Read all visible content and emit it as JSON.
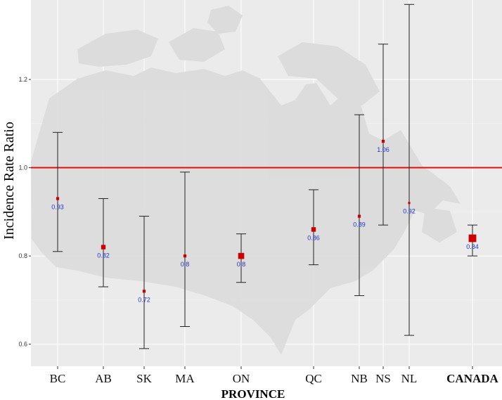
{
  "chart_data": {
    "type": "scatter",
    "title": "",
    "xlabel": "PROVINCE",
    "ylabel": "Incidence Rate Ratio",
    "ylim": [
      0.55,
      1.38
    ],
    "y_ticks": [
      0.6,
      0.8,
      1.0,
      1.2
    ],
    "y_tick_labels": [
      "0.6",
      "0.8",
      "1.0",
      "1.2"
    ],
    "reference_line": 1.0,
    "grid": true,
    "background_image": "canada-map-silhouette",
    "categories": [
      "BC",
      "AB",
      "SK",
      "MA",
      "ON",
      "QC",
      "NB",
      "NS",
      "NL",
      "CANADA"
    ],
    "points": [
      {
        "category": "BC",
        "estimate": 0.93,
        "lower": 0.81,
        "upper": 1.08,
        "label": "0.93",
        "marker_weight": 1
      },
      {
        "category": "AB",
        "estimate": 0.82,
        "lower": 0.73,
        "upper": 0.93,
        "label": "0.82",
        "marker_weight": 2
      },
      {
        "category": "SK",
        "estimate": 0.72,
        "lower": 0.59,
        "upper": 0.89,
        "label": "0.72",
        "marker_weight": 1
      },
      {
        "category": "MA",
        "estimate": 0.8,
        "lower": 0.64,
        "upper": 0.99,
        "label": "0.8",
        "marker_weight": 1
      },
      {
        "category": "ON",
        "estimate": 0.8,
        "lower": 0.74,
        "upper": 0.85,
        "label": "0.8",
        "marker_weight": 3
      },
      {
        "category": "QC",
        "estimate": 0.86,
        "lower": 0.78,
        "upper": 0.95,
        "label": "0.86",
        "marker_weight": 2
      },
      {
        "category": "NB",
        "estimate": 0.89,
        "lower": 0.71,
        "upper": 1.12,
        "label": "0.89",
        "marker_weight": 1
      },
      {
        "category": "NS",
        "estimate": 1.06,
        "lower": 0.87,
        "upper": 1.28,
        "label": "1.06",
        "marker_weight": 1
      },
      {
        "category": "NL",
        "estimate": 0.92,
        "lower": 0.62,
        "upper": 1.37,
        "label": "0.92",
        "marker_weight": 0.5
      },
      {
        "category": "CANADA",
        "estimate": 0.84,
        "lower": 0.8,
        "upper": 0.87,
        "label": "0.84",
        "marker_weight": 4
      }
    ],
    "colors": {
      "point": "#cc0000",
      "reference_line": "#e01010",
      "error_bar": "#222222",
      "data_label": "#2233cc",
      "highlight_category": "#dd1111",
      "panel_background": "#ebebeb",
      "map_fill": "#dcdcdc"
    },
    "highlight_category": "CANADA"
  }
}
